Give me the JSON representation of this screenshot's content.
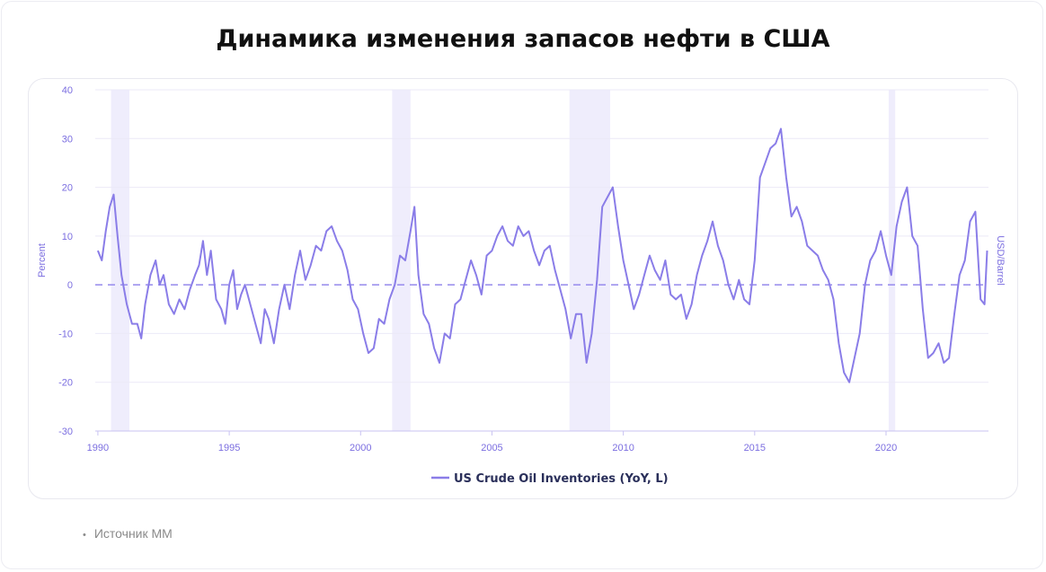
{
  "title": "Динамика изменения запасов нефти в США",
  "source": "Источник ММ",
  "chart_data": {
    "type": "line",
    "title": "Динамика изменения запасов нефти в США",
    "ylabel_left": "Percent",
    "ylabel_right": "USD/Barrel",
    "ylim": [
      -30,
      40
    ],
    "y_ticks": [
      40,
      30,
      20,
      10,
      0,
      -10,
      -20,
      -30
    ],
    "xlim": [
      1989.9,
      2023.9
    ],
    "x_ticks": [
      1990,
      1995,
      2000,
      2005,
      2010,
      2015,
      2020
    ],
    "grid": true,
    "legend_position": "bottom",
    "zero_line_dashed": true,
    "recession_bands": [
      [
        1990.5,
        1991.2
      ],
      [
        2001.2,
        2001.9
      ],
      [
        2007.95,
        2009.5
      ],
      [
        2020.1,
        2020.35
      ]
    ],
    "series": [
      {
        "name": "US Crude Oil Inventories (YoY, L)",
        "color": "#8a7de8",
        "points": [
          [
            1990.0,
            7
          ],
          [
            1990.15,
            5
          ],
          [
            1990.3,
            11
          ],
          [
            1990.45,
            16
          ],
          [
            1990.6,
            18.5
          ],
          [
            1990.75,
            10
          ],
          [
            1990.9,
            2
          ],
          [
            1991.1,
            -4
          ],
          [
            1991.3,
            -8
          ],
          [
            1991.5,
            -8
          ],
          [
            1991.65,
            -11
          ],
          [
            1991.8,
            -4
          ],
          [
            1992.0,
            2
          ],
          [
            1992.2,
            5
          ],
          [
            1992.35,
            0
          ],
          [
            1992.5,
            2
          ],
          [
            1992.7,
            -4
          ],
          [
            1992.9,
            -6
          ],
          [
            1993.1,
            -3
          ],
          [
            1993.3,
            -5
          ],
          [
            1993.5,
            -1
          ],
          [
            1993.7,
            2
          ],
          [
            1993.85,
            4
          ],
          [
            1994.0,
            9
          ],
          [
            1994.15,
            2
          ],
          [
            1994.3,
            7
          ],
          [
            1994.5,
            -3
          ],
          [
            1994.7,
            -5
          ],
          [
            1994.85,
            -8
          ],
          [
            1995.0,
            0
          ],
          [
            1995.15,
            3
          ],
          [
            1995.3,
            -5
          ],
          [
            1995.45,
            -2
          ],
          [
            1995.6,
            0
          ],
          [
            1995.8,
            -4
          ],
          [
            1996.0,
            -8
          ],
          [
            1996.2,
            -12
          ],
          [
            1996.35,
            -5
          ],
          [
            1996.5,
            -7
          ],
          [
            1996.7,
            -12
          ],
          [
            1996.9,
            -5
          ],
          [
            1997.1,
            0
          ],
          [
            1997.3,
            -5
          ],
          [
            1997.5,
            2
          ],
          [
            1997.7,
            7
          ],
          [
            1997.9,
            1
          ],
          [
            1998.1,
            4
          ],
          [
            1998.3,
            8
          ],
          [
            1998.5,
            7
          ],
          [
            1998.7,
            11
          ],
          [
            1998.9,
            12
          ],
          [
            1999.1,
            9
          ],
          [
            1999.3,
            7
          ],
          [
            1999.5,
            3
          ],
          [
            1999.7,
            -3
          ],
          [
            1999.9,
            -5
          ],
          [
            2000.1,
            -10
          ],
          [
            2000.3,
            -14
          ],
          [
            2000.5,
            -13
          ],
          [
            2000.7,
            -7
          ],
          [
            2000.9,
            -8
          ],
          [
            2001.1,
            -3
          ],
          [
            2001.3,
            0
          ],
          [
            2001.5,
            6
          ],
          [
            2001.7,
            5
          ],
          [
            2001.9,
            11
          ],
          [
            2002.05,
            16
          ],
          [
            2002.2,
            2
          ],
          [
            2002.4,
            -6
          ],
          [
            2002.6,
            -8
          ],
          [
            2002.8,
            -13
          ],
          [
            2003.0,
            -16
          ],
          [
            2003.2,
            -10
          ],
          [
            2003.4,
            -11
          ],
          [
            2003.6,
            -4
          ],
          [
            2003.8,
            -3
          ],
          [
            2004.0,
            1
          ],
          [
            2004.2,
            5
          ],
          [
            2004.4,
            2
          ],
          [
            2004.6,
            -2
          ],
          [
            2004.8,
            6
          ],
          [
            2005.0,
            7
          ],
          [
            2005.2,
            10
          ],
          [
            2005.4,
            12
          ],
          [
            2005.6,
            9
          ],
          [
            2005.8,
            8
          ],
          [
            2006.0,
            12
          ],
          [
            2006.2,
            10
          ],
          [
            2006.4,
            11
          ],
          [
            2006.6,
            7
          ],
          [
            2006.8,
            4
          ],
          [
            2007.0,
            7
          ],
          [
            2007.2,
            8
          ],
          [
            2007.4,
            3
          ],
          [
            2007.6,
            -1
          ],
          [
            2007.8,
            -5
          ],
          [
            2008.0,
            -11
          ],
          [
            2008.2,
            -6
          ],
          [
            2008.4,
            -6
          ],
          [
            2008.6,
            -16
          ],
          [
            2008.8,
            -10
          ],
          [
            2009.0,
            1
          ],
          [
            2009.2,
            16
          ],
          [
            2009.4,
            18
          ],
          [
            2009.6,
            20
          ],
          [
            2009.8,
            12
          ],
          [
            2010.0,
            5
          ],
          [
            2010.2,
            0
          ],
          [
            2010.4,
            -5
          ],
          [
            2010.6,
            -2
          ],
          [
            2010.8,
            2
          ],
          [
            2011.0,
            6
          ],
          [
            2011.2,
            3
          ],
          [
            2011.4,
            1
          ],
          [
            2011.6,
            5
          ],
          [
            2011.8,
            -2
          ],
          [
            2012.0,
            -3
          ],
          [
            2012.2,
            -2
          ],
          [
            2012.4,
            -7
          ],
          [
            2012.6,
            -4
          ],
          [
            2012.8,
            2
          ],
          [
            2013.0,
            6
          ],
          [
            2013.2,
            9
          ],
          [
            2013.4,
            13
          ],
          [
            2013.6,
            8
          ],
          [
            2013.8,
            5
          ],
          [
            2014.0,
            0
          ],
          [
            2014.2,
            -3
          ],
          [
            2014.4,
            1
          ],
          [
            2014.6,
            -3
          ],
          [
            2014.8,
            -4
          ],
          [
            2015.0,
            5
          ],
          [
            2015.2,
            22
          ],
          [
            2015.4,
            25
          ],
          [
            2015.6,
            28
          ],
          [
            2015.8,
            29
          ],
          [
            2016.0,
            32
          ],
          [
            2016.2,
            22
          ],
          [
            2016.4,
            14
          ],
          [
            2016.6,
            16
          ],
          [
            2016.8,
            13
          ],
          [
            2017.0,
            8
          ],
          [
            2017.2,
            7
          ],
          [
            2017.4,
            6
          ],
          [
            2017.6,
            3
          ],
          [
            2017.8,
            1
          ],
          [
            2018.0,
            -3
          ],
          [
            2018.2,
            -12
          ],
          [
            2018.4,
            -18
          ],
          [
            2018.6,
            -20
          ],
          [
            2018.8,
            -15
          ],
          [
            2019.0,
            -10
          ],
          [
            2019.2,
            0
          ],
          [
            2019.4,
            5
          ],
          [
            2019.6,
            7
          ],
          [
            2019.8,
            11
          ],
          [
            2020.0,
            6
          ],
          [
            2020.2,
            2
          ],
          [
            2020.4,
            12
          ],
          [
            2020.6,
            17
          ],
          [
            2020.8,
            20
          ],
          [
            2021.0,
            10
          ],
          [
            2021.2,
            8
          ],
          [
            2021.4,
            -5
          ],
          [
            2021.6,
            -15
          ],
          [
            2021.8,
            -14
          ],
          [
            2022.0,
            -12
          ],
          [
            2022.2,
            -16
          ],
          [
            2022.4,
            -15
          ],
          [
            2022.6,
            -6
          ],
          [
            2022.8,
            2
          ],
          [
            2023.0,
            5
          ],
          [
            2023.2,
            13
          ],
          [
            2023.4,
            15
          ],
          [
            2023.6,
            -3
          ],
          [
            2023.75,
            -4
          ],
          [
            2023.85,
            7
          ]
        ]
      }
    ]
  }
}
